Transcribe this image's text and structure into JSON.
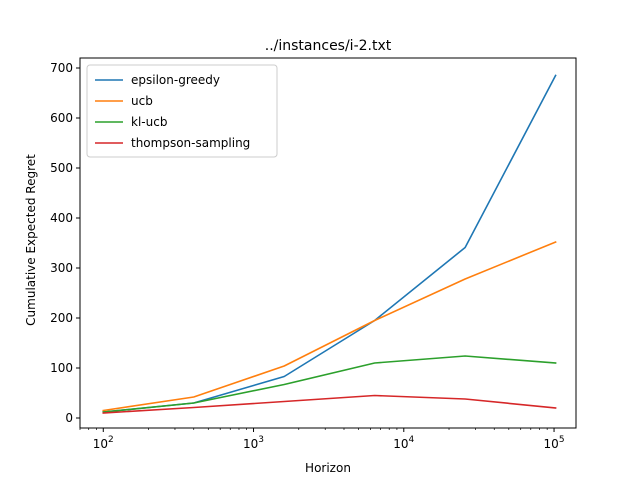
{
  "chart_data": {
    "type": "line",
    "title": "../instances/i-2.txt",
    "xlabel": "Horizon",
    "ylabel": "Cumulative Expected Regret",
    "xscale": "log",
    "xlim": [
      70,
      140000
    ],
    "ylim": [
      -20,
      720
    ],
    "grid": false,
    "legend_position": "top-left",
    "x": [
      100,
      400,
      1600,
      6400,
      25600,
      102400
    ],
    "x_ticks": [
      {
        "value": 100,
        "base": "10",
        "exp": "2"
      },
      {
        "value": 1000,
        "base": "10",
        "exp": "3"
      },
      {
        "value": 10000,
        "base": "10",
        "exp": "4"
      },
      {
        "value": 100000,
        "base": "10",
        "exp": "5"
      }
    ],
    "y_ticks": [
      0,
      100,
      200,
      300,
      400,
      500,
      600,
      700
    ],
    "series": [
      {
        "name": "epsilon-greedy",
        "color": "#1f77b4",
        "values": [
          12,
          30,
          83,
          195,
          341,
          685
        ]
      },
      {
        "name": "ucb",
        "color": "#ff7f0e",
        "values": [
          15,
          42,
          104,
          195,
          278,
          352
        ]
      },
      {
        "name": "kl-ucb",
        "color": "#2ca02c",
        "values": [
          12,
          30,
          67,
          110,
          124,
          110
        ]
      },
      {
        "name": "thompson-sampling",
        "color": "#d62728",
        "values": [
          10,
          21,
          33,
          45,
          38,
          20
        ]
      }
    ]
  }
}
